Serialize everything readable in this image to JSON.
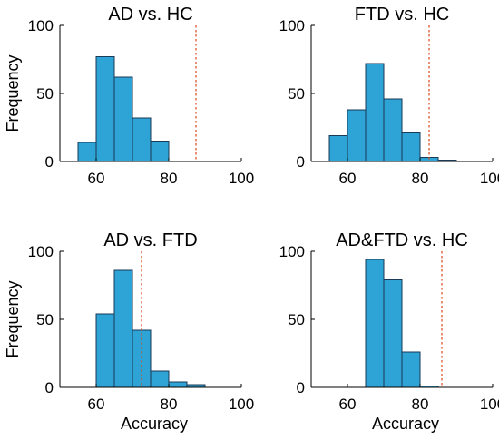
{
  "colors": {
    "bar_fill": "#2ea3d6",
    "bar_edge": "#1b3a57",
    "reference_line": "#d9481c",
    "axis": "#000000"
  },
  "chart_data": [
    {
      "type": "bar",
      "title": "AD vs. HC",
      "xlabel": "",
      "ylabel": "Frequency",
      "x_ticks": [
        "60",
        "80",
        "100"
      ],
      "y_ticks": [
        "0",
        "50",
        "100"
      ],
      "xlim": [
        50,
        100
      ],
      "ylim": [
        0,
        100
      ],
      "bin_starts": [
        55,
        60,
        65,
        70,
        75
      ],
      "bin_width": 5,
      "values": [
        14,
        77,
        62,
        32,
        15
      ],
      "reference_x": 87.5,
      "grid": false
    },
    {
      "type": "bar",
      "title": "FTD vs. HC",
      "xlabel": "",
      "ylabel": "",
      "x_ticks": [
        "60",
        "80",
        "100"
      ],
      "y_ticks": [
        "0",
        "50",
        "100"
      ],
      "xlim": [
        50,
        100
      ],
      "ylim": [
        0,
        100
      ],
      "bin_starts": [
        55,
        60,
        65,
        70,
        75,
        80,
        85
      ],
      "bin_width": 5,
      "values": [
        19,
        38,
        72,
        46,
        21,
        3,
        1
      ],
      "reference_x": 82.5,
      "grid": false
    },
    {
      "type": "bar",
      "title": "AD vs. FTD",
      "xlabel": "Accuracy",
      "ylabel": "Frequency",
      "x_ticks": [
        "60",
        "80",
        "100"
      ],
      "y_ticks": [
        "0",
        "50",
        "100"
      ],
      "xlim": [
        50,
        100
      ],
      "ylim": [
        0,
        100
      ],
      "bin_starts": [
        60,
        65,
        70,
        75,
        80,
        85
      ],
      "bin_width": 5,
      "values": [
        54,
        86,
        42,
        12,
        4,
        2
      ],
      "reference_x": 72.5,
      "grid": false
    },
    {
      "type": "bar",
      "title": "AD&FTD vs. HC",
      "xlabel": "Accuracy",
      "ylabel": "",
      "x_ticks": [
        "60",
        "80",
        "100"
      ],
      "y_ticks": [
        "0",
        "50",
        "100"
      ],
      "xlim": [
        50,
        100
      ],
      "ylim": [
        0,
        100
      ],
      "bin_starts": [
        65,
        70,
        75,
        80
      ],
      "bin_width": 5,
      "values": [
        94,
        79,
        26,
        1
      ],
      "reference_x": 86,
      "grid": false
    }
  ]
}
